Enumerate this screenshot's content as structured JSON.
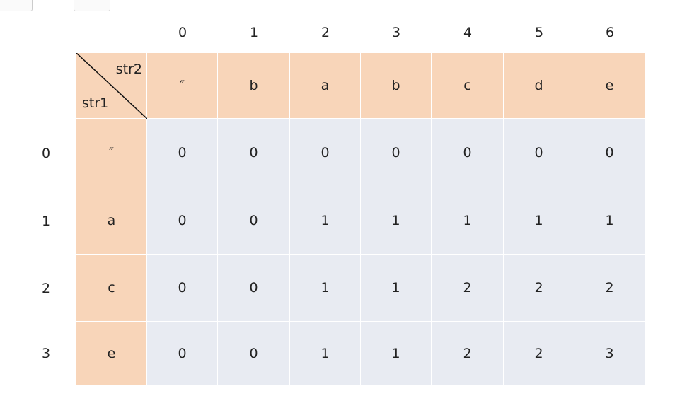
{
  "column_indices": [
    0,
    1,
    2,
    3,
    4,
    5,
    6
  ],
  "row_indices": [
    0,
    1,
    2,
    3
  ],
  "corner": {
    "top": "str2",
    "bottom": "str1"
  },
  "header_columns": [
    "″",
    "b",
    "a",
    "b",
    "c",
    "d",
    "e"
  ],
  "rows": [
    {
      "label": "″",
      "values": [
        0,
        0,
        0,
        0,
        0,
        0,
        0
      ]
    },
    {
      "label": "a",
      "values": [
        0,
        0,
        1,
        1,
        1,
        1,
        1
      ]
    },
    {
      "label": "c",
      "values": [
        0,
        0,
        1,
        1,
        2,
        2,
        2
      ]
    },
    {
      "label": "e",
      "values": [
        0,
        0,
        1,
        1,
        2,
        2,
        3
      ]
    }
  ]
}
